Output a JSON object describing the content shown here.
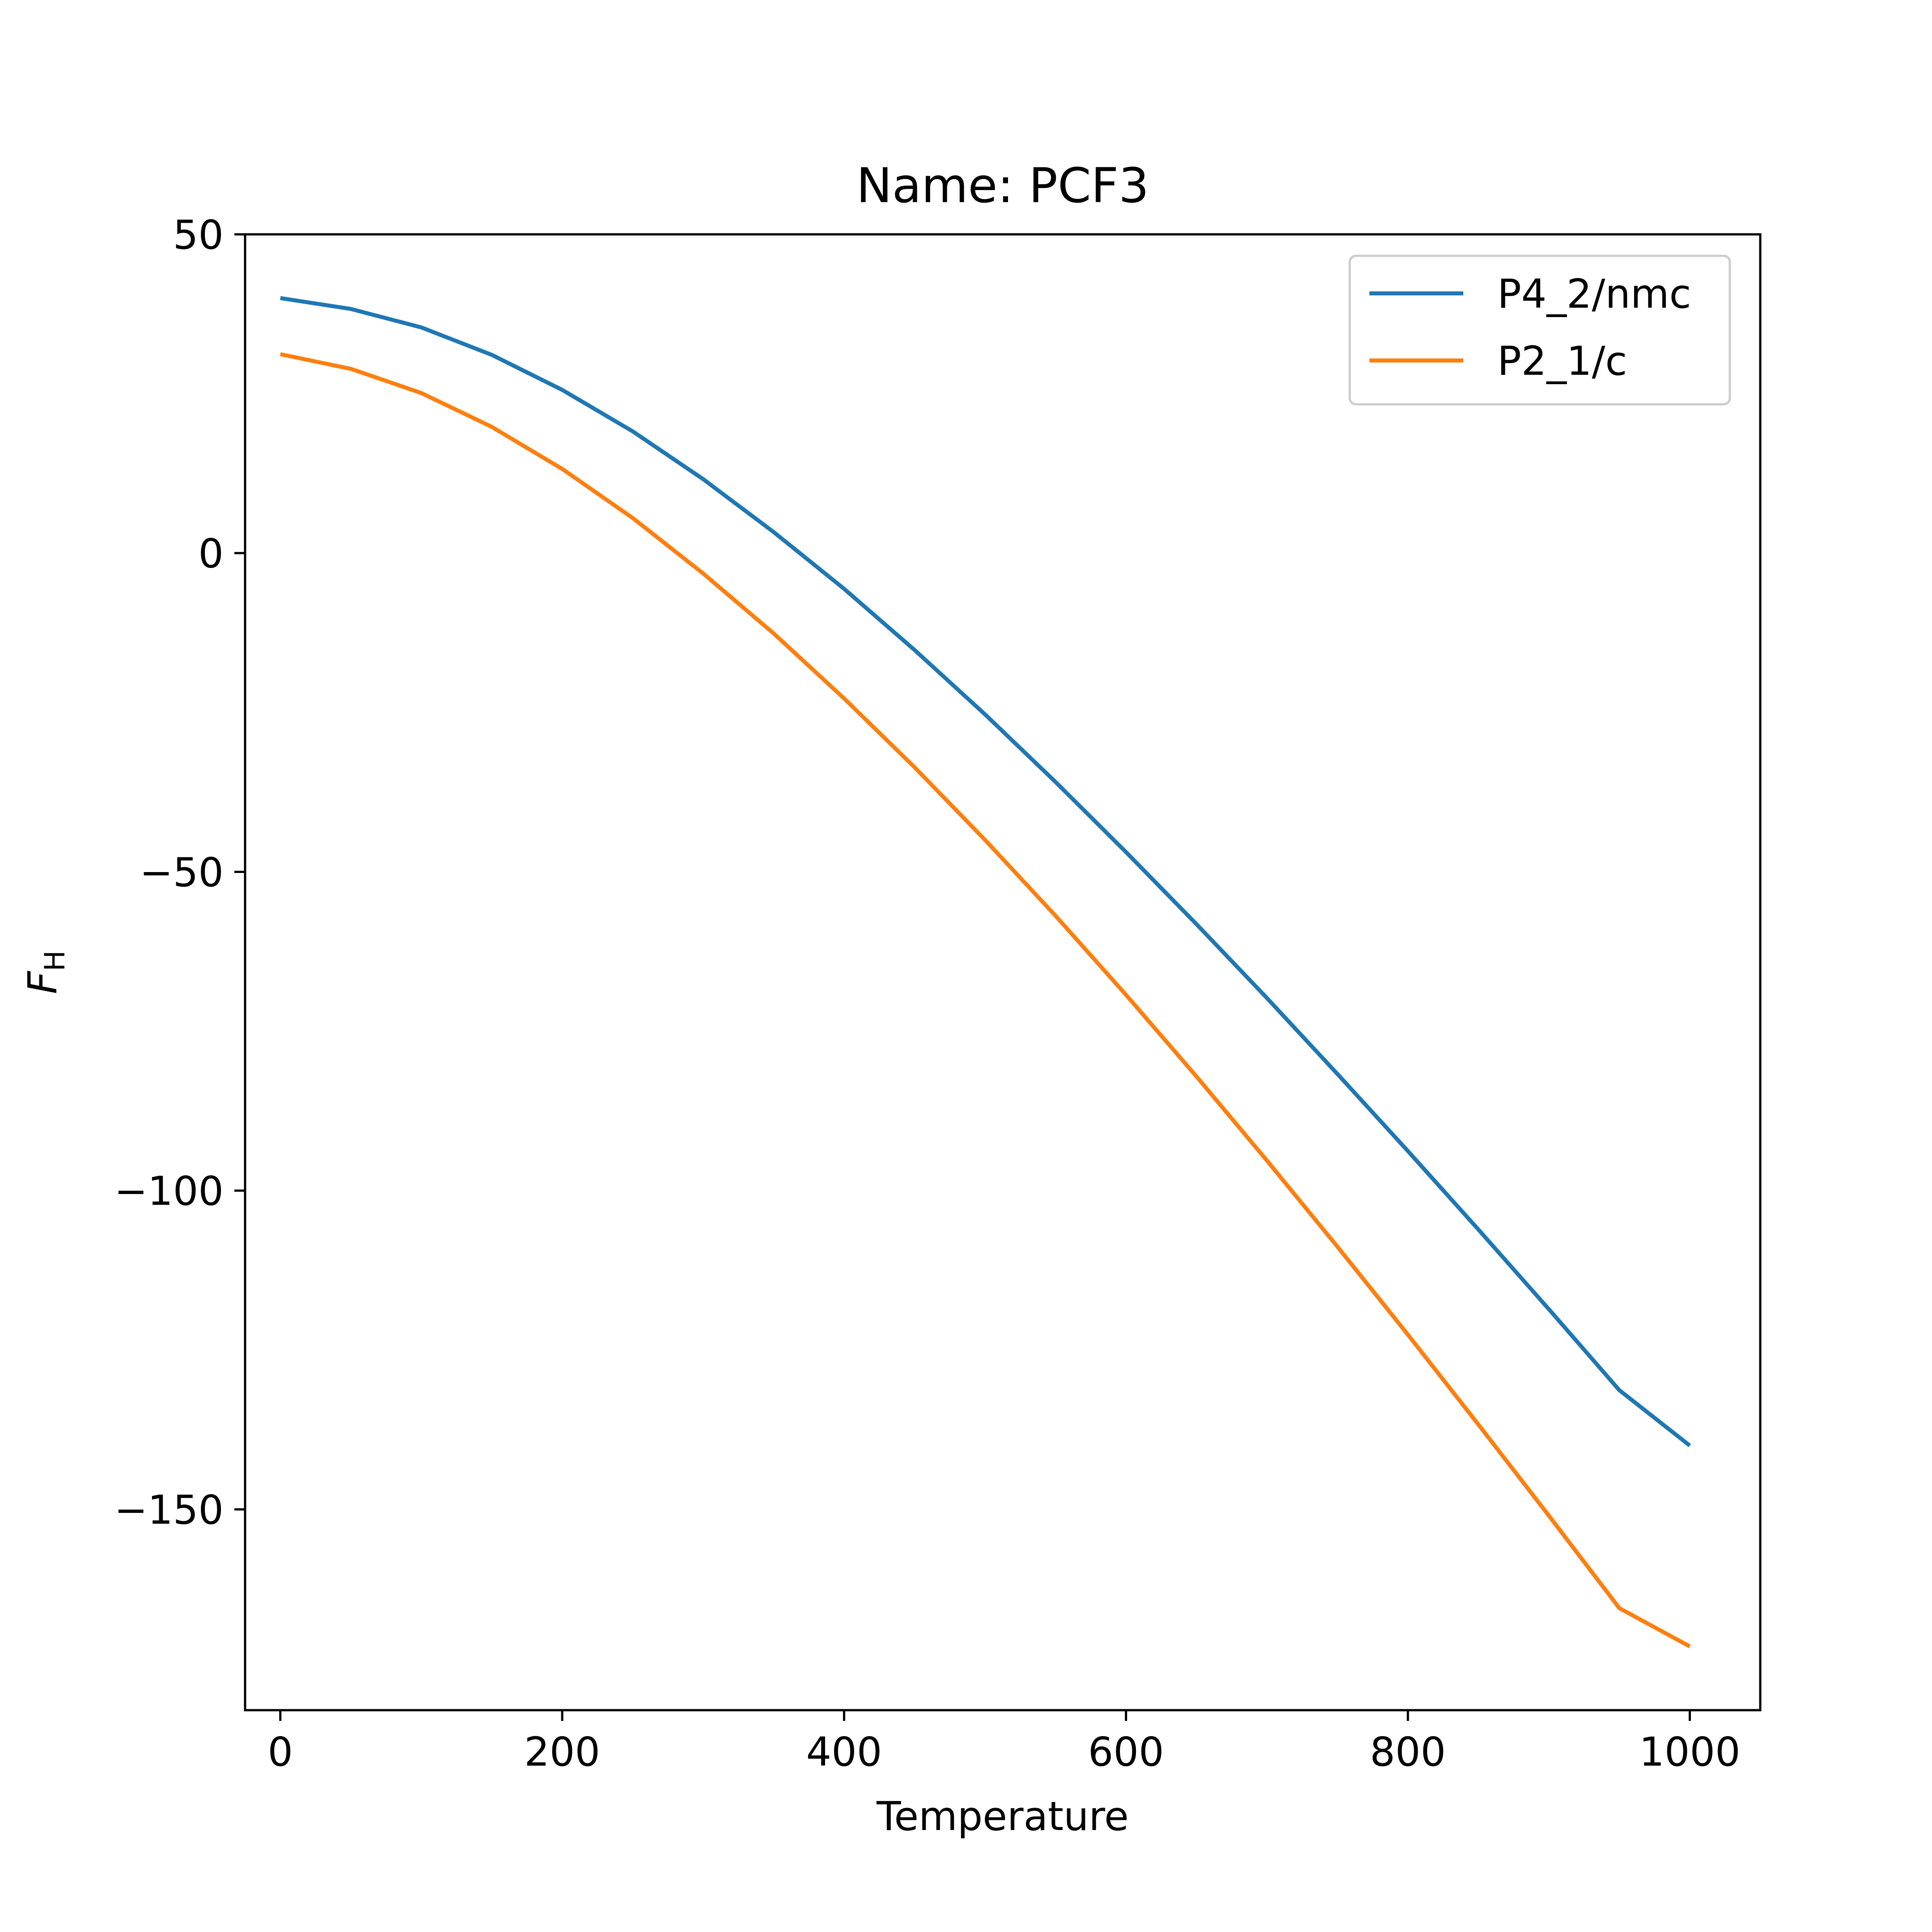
{
  "chart_data": {
    "type": "line",
    "title": "Name: PCF3",
    "xlabel": "Temperature",
    "ylabel_main": "F",
    "ylabel_sub": "H",
    "xlim": [
      -25,
      1050
    ],
    "ylim": [
      -181.5,
      50
    ],
    "x_ticks": [
      0,
      200,
      400,
      600,
      800,
      1000
    ],
    "x_tick_labels": [
      "0",
      "200",
      "400",
      "600",
      "800",
      "1000"
    ],
    "y_ticks": [
      50,
      0,
      -50,
      -100,
      -150
    ],
    "y_tick_labels": [
      "50",
      "0",
      "−50",
      "−100",
      "−150"
    ],
    "grid": false,
    "legend_position": "top-right",
    "series": [
      {
        "name": "P4_2/nmc",
        "color": "#1f77b4",
        "x": [
          0,
          50,
          100,
          150,
          200,
          250,
          300,
          350,
          400,
          450,
          500,
          550,
          600,
          650,
          700,
          750,
          800,
          850,
          900,
          950,
          1000
        ],
        "y": [
          40,
          38.3,
          35.4,
          31.1,
          25.6,
          19.1,
          11.6,
          3.3,
          -5.6,
          -15.2,
          -25.3,
          -35.9,
          -46.9,
          -58.2,
          -69.8,
          -81.7,
          -93.8,
          -106.1,
          -118.6,
          -131.3,
          -140
        ]
      },
      {
        "name": "P2_1/c",
        "color": "#ff7f0e",
        "x": [
          0,
          50,
          100,
          150,
          200,
          250,
          300,
          350,
          400,
          450,
          500,
          550,
          600,
          650,
          700,
          750,
          800,
          850,
          900,
          950,
          1000
        ],
        "y": [
          31.2,
          28.9,
          25.1,
          19.8,
          13.2,
          5.5,
          -3.2,
          -12.6,
          -22.8,
          -33.6,
          -45.0,
          -56.9,
          -69.3,
          -82.1,
          -95.3,
          -108.8,
          -122.6,
          -136.7,
          -151.0,
          -165.5,
          -171.5
        ]
      }
    ]
  }
}
